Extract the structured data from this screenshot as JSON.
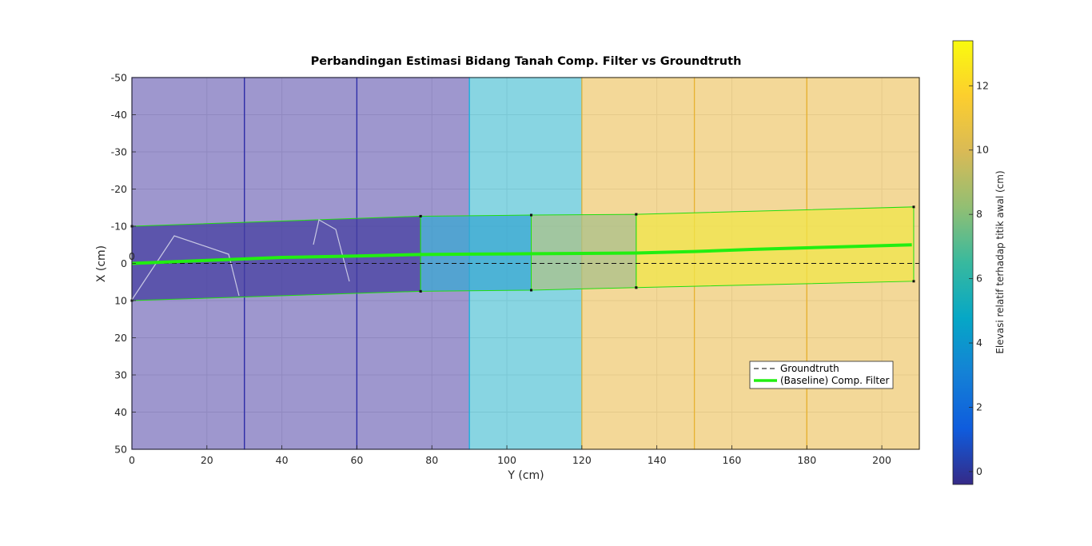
{
  "chart_data": {
    "type": "area",
    "title": "Perbandingan Estimasi Bidang Tanah Comp. Filter vs Groundtruth",
    "xlabel": "Y (cm)",
    "ylabel": "X (cm)",
    "xlim": [
      0,
      210
    ],
    "ylim": [
      -50,
      50
    ],
    "y_reversed": true,
    "xticks": [
      "0",
      "20",
      "40",
      "60",
      "80",
      "100",
      "120",
      "140",
      "160",
      "180",
      "200"
    ],
    "yticks": [
      "-50",
      "-40",
      "-30",
      "-20",
      "-10",
      "0",
      "10",
      "20",
      "30",
      "40",
      "50"
    ],
    "grid": true,
    "origin_label": "0",
    "groundtruth_tiles": [
      {
        "y_start": 0,
        "y_end": 30,
        "elevation": 0
      },
      {
        "y_start": 30,
        "y_end": 60,
        "elevation": 0
      },
      {
        "y_start": 60,
        "y_end": 90,
        "elevation": 0
      },
      {
        "y_start": 90,
        "y_end": 120,
        "elevation": 5
      },
      {
        "y_start": 120,
        "y_end": 150,
        "elevation": 10.5
      },
      {
        "y_start": 150,
        "y_end": 180,
        "elevation": 10.5
      },
      {
        "y_start": 180,
        "y_end": 210,
        "elevation": 10.5
      }
    ],
    "estimated_segments": [
      {
        "top_start": -10,
        "top_end": -12.7,
        "bottom_start": 10,
        "bottom_end": 7.5,
        "y_start": 0,
        "y_end": 77,
        "elevation": 0
      },
      {
        "top_start": -12.7,
        "top_end": -13,
        "bottom_start": 7.5,
        "bottom_end": 7.2,
        "y_start": 77,
        "y_end": 106.5,
        "elevation": 5
      },
      {
        "top_start": -13,
        "top_end": -13.2,
        "bottom_start": 7.2,
        "bottom_end": 6.5,
        "y_start": 106.5,
        "y_end": 134.5,
        "elevation": 8.3
      },
      {
        "top_start": -13.2,
        "top_end": -15.2,
        "bottom_start": 6.5,
        "bottom_end": 4.8,
        "y_start": 134.5,
        "y_end": 208.5,
        "elevation": 13
      }
    ],
    "trajectory": {
      "name": "(Baseline) Comp. Filter",
      "points": [
        [
          0,
          0
        ],
        [
          20,
          -0.8
        ],
        [
          40,
          -1.6
        ],
        [
          60,
          -2
        ],
        [
          77,
          -2.4
        ],
        [
          90,
          -2.5
        ],
        [
          106.5,
          -2.6
        ],
        [
          120,
          -2.7
        ],
        [
          134.5,
          -2.8
        ],
        [
          150,
          -3.2
        ],
        [
          166,
          -3.8
        ],
        [
          190,
          -4.5
        ],
        [
          208,
          -5
        ]
      ]
    },
    "groundtruth_line": {
      "name": "Groundtruth",
      "x": 0
    },
    "legend": {
      "position": "lower-right",
      "entries": [
        "Groundtruth",
        "(Baseline) Comp. Filter"
      ]
    },
    "colorbar": {
      "label": "Elevasi relatif terhadap titik awal (cm)",
      "range": [
        -0.4,
        13.4
      ],
      "ticks": [
        "0",
        "2",
        "4",
        "6",
        "8",
        "10",
        "12"
      ]
    },
    "colors": {
      "level_0": "#3e2f9e",
      "level_5": "#12acc6",
      "level_10_5": "#e7b232",
      "est_0": "#453fa0",
      "est_5": "#3aa7d2",
      "est_8": "#a9c08a",
      "est_13": "#f0e54a",
      "trajectory": "#22ee11"
    }
  }
}
